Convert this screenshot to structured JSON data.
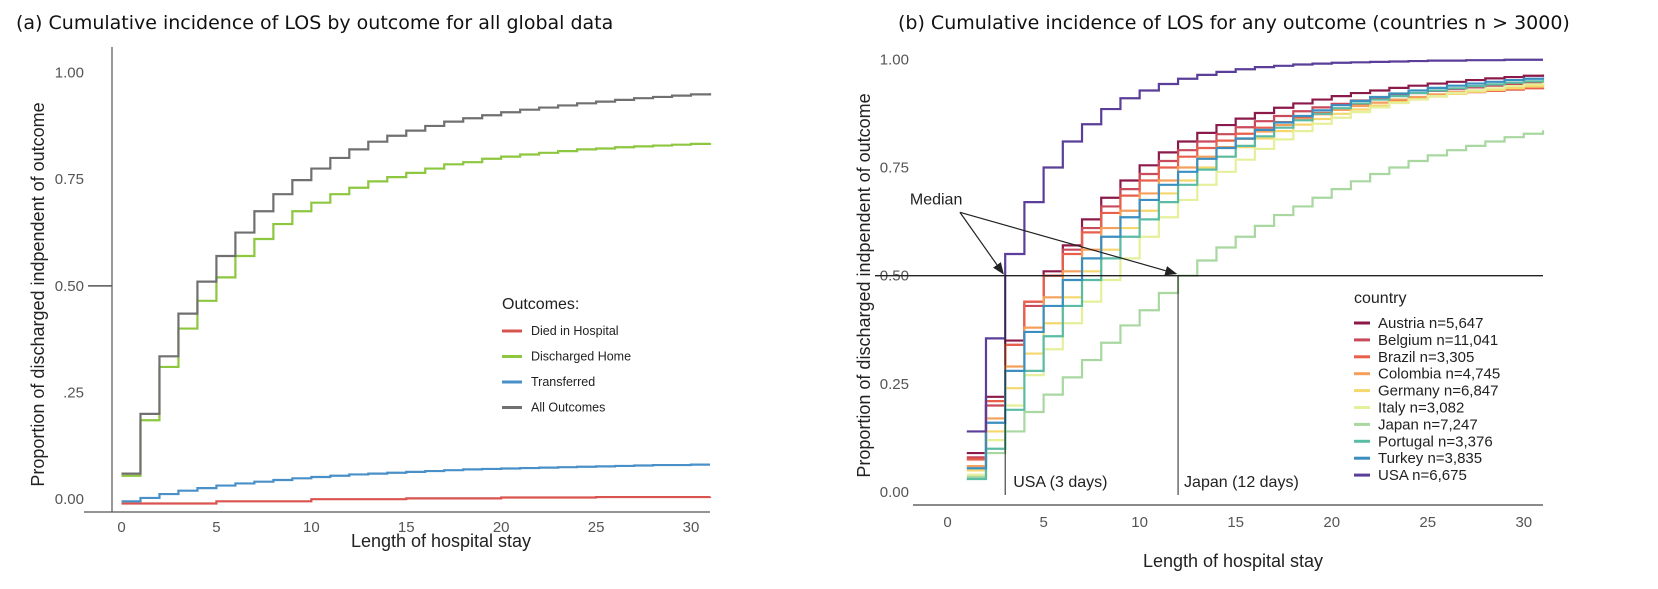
{
  "chart_data": [
    {
      "type": "line",
      "step": true,
      "title": "(a) Cumulative incidence of LOS by outcome for all global data",
      "xlabel": "Length of hospital stay",
      "ylabel": "Proportion of discharged indpendent of outcome",
      "xlim": [
        -0.5,
        31
      ],
      "ylim": [
        -0.03,
        1.06
      ],
      "xticks": [
        "0",
        "5",
        "10",
        "15",
        "20",
        "25",
        "30"
      ],
      "xtick_values": [
        0,
        5,
        10,
        15,
        20,
        25,
        30
      ],
      "yticks": [
        "0.00",
        ".25",
        "0.50",
        "0.75",
        "1.00"
      ],
      "ytick_values": [
        0,
        0.25,
        0.5,
        0.75,
        1.0
      ],
      "legend_title": "Outcomes:",
      "legend_position": "center-right",
      "grid": false,
      "series": [
        {
          "name": "Died in Hospital",
          "color": "#d9534f",
          "x": [
            0,
            5,
            10,
            15,
            20,
            25,
            31
          ],
          "y": [
            -0.01,
            -0.005,
            -0.0,
            0.002,
            0.004,
            0.005,
            0.006
          ]
        },
        {
          "name": "Discharged Home",
          "color": "#8dc63f",
          "x": [
            0,
            1,
            2,
            3,
            4,
            5,
            6,
            7,
            8,
            9,
            10,
            11,
            12,
            13,
            14,
            15,
            16,
            17,
            18,
            19,
            20,
            21,
            22,
            23,
            24,
            25,
            26,
            27,
            28,
            29,
            30,
            31
          ],
          "y": [
            0.055,
            0.185,
            0.31,
            0.4,
            0.465,
            0.52,
            0.57,
            0.61,
            0.645,
            0.675,
            0.695,
            0.715,
            0.73,
            0.745,
            0.755,
            0.765,
            0.775,
            0.785,
            0.79,
            0.798,
            0.803,
            0.808,
            0.812,
            0.816,
            0.82,
            0.822,
            0.825,
            0.827,
            0.829,
            0.831,
            0.833,
            0.835
          ]
        },
        {
          "name": "Transferred",
          "color": "#4a90c8",
          "x": [
            0,
            1,
            2,
            3,
            4,
            5,
            6,
            7,
            8,
            9,
            10,
            11,
            12,
            13,
            14,
            15,
            16,
            17,
            18,
            19,
            20,
            21,
            22,
            23,
            24,
            25,
            26,
            27,
            28,
            29,
            30,
            31
          ],
          "y": [
            -0.005,
            0.003,
            0.012,
            0.02,
            0.026,
            0.032,
            0.037,
            0.041,
            0.045,
            0.049,
            0.052,
            0.055,
            0.058,
            0.06,
            0.062,
            0.064,
            0.066,
            0.068,
            0.07,
            0.071,
            0.072,
            0.073,
            0.074,
            0.075,
            0.076,
            0.077,
            0.078,
            0.079,
            0.08,
            0.08,
            0.081,
            0.081
          ]
        },
        {
          "name": "All Outcomes",
          "color": "#707070",
          "x": [
            0,
            1,
            2,
            3,
            4,
            5,
            6,
            7,
            8,
            9,
            10,
            11,
            12,
            13,
            14,
            15,
            16,
            17,
            18,
            19,
            20,
            21,
            22,
            23,
            24,
            25,
            26,
            27,
            28,
            29,
            30,
            31
          ],
          "y": [
            0.06,
            0.2,
            0.335,
            0.435,
            0.51,
            0.57,
            0.625,
            0.675,
            0.715,
            0.748,
            0.775,
            0.8,
            0.82,
            0.838,
            0.852,
            0.864,
            0.875,
            0.885,
            0.893,
            0.9,
            0.907,
            0.913,
            0.918,
            0.923,
            0.928,
            0.932,
            0.936,
            0.94,
            0.943,
            0.946,
            0.949,
            0.952
          ]
        }
      ]
    },
    {
      "type": "line",
      "step": true,
      "title": "(b) Cumulative incidence of LOS for any outcome (countries n > 3000)",
      "xlabel": "Length of hospital stay",
      "ylabel": "Proportion of discharged indpendent of outcome",
      "xlim": [
        -1.8,
        31
      ],
      "ylim": [
        -0.03,
        1.04
      ],
      "xticks": [
        "0",
        "5",
        "10",
        "15",
        "20",
        "25",
        "30"
      ],
      "xtick_values": [
        0,
        5,
        10,
        15,
        20,
        25,
        30
      ],
      "yticks": [
        "0.00",
        "0.25",
        "0.50",
        "0.75",
        "1.00"
      ],
      "ytick_values": [
        0,
        0.25,
        0.5,
        0.75,
        1.0
      ],
      "legend_title": "country",
      "legend_position": "right",
      "grid": false,
      "reference_line_y": 0.5,
      "annotations": [
        {
          "text": "Median",
          "x": -0.4,
          "y": 0.665
        },
        {
          "text": "USA (3 days)",
          "x": 3,
          "y": 0.5
        },
        {
          "text": "Japan (12 days)",
          "x": 12,
          "y": 0.5
        }
      ],
      "series": [
        {
          "name": "Austria n=5,647",
          "color": "#8b1a4a",
          "x": [
            1,
            2,
            3,
            4,
            5,
            6,
            7,
            8,
            9,
            10,
            11,
            12,
            13,
            14,
            15,
            16,
            17,
            18,
            19,
            20,
            21,
            22,
            23,
            24,
            25,
            26,
            27,
            28,
            29,
            30,
            31
          ],
          "y": [
            0.09,
            0.22,
            0.35,
            0.44,
            0.51,
            0.57,
            0.63,
            0.68,
            0.72,
            0.755,
            0.785,
            0.81,
            0.83,
            0.848,
            0.863,
            0.876,
            0.888,
            0.898,
            0.907,
            0.915,
            0.922,
            0.928,
            0.934,
            0.939,
            0.944,
            0.948,
            0.952,
            0.956,
            0.959,
            0.962,
            0.965
          ]
        },
        {
          "name": "Belgium n=11,041",
          "color": "#c94a5a",
          "x": [
            1,
            2,
            3,
            4,
            5,
            6,
            7,
            8,
            9,
            10,
            11,
            12,
            13,
            14,
            15,
            16,
            17,
            18,
            19,
            20,
            21,
            22,
            23,
            24,
            25,
            26,
            27,
            28,
            29,
            30,
            31
          ],
          "y": [
            0.08,
            0.2,
            0.34,
            0.43,
            0.5,
            0.56,
            0.61,
            0.66,
            0.7,
            0.735,
            0.765,
            0.79,
            0.81,
            0.827,
            0.843,
            0.857,
            0.869,
            0.88,
            0.889,
            0.897,
            0.905,
            0.911,
            0.917,
            0.922,
            0.927,
            0.931,
            0.935,
            0.939,
            0.942,
            0.945,
            0.948
          ]
        },
        {
          "name": "Brazil n=3,305",
          "color": "#e8604c",
          "x": [
            1,
            2,
            3,
            4,
            5,
            6,
            7,
            8,
            9,
            10,
            11,
            12,
            13,
            14,
            15,
            16,
            17,
            18,
            19,
            20,
            21,
            22,
            23,
            24,
            25,
            26,
            27,
            28,
            29,
            30,
            31
          ],
          "y": [
            0.075,
            0.21,
            0.34,
            0.44,
            0.5,
            0.55,
            0.6,
            0.645,
            0.685,
            0.72,
            0.75,
            0.775,
            0.795,
            0.812,
            0.828,
            0.842,
            0.855,
            0.866,
            0.876,
            0.885,
            0.893,
            0.9,
            0.906,
            0.911,
            0.916,
            0.92,
            0.924,
            0.927,
            0.93,
            0.933,
            0.935
          ]
        },
        {
          "name": "Colombia n=4,745",
          "color": "#f5a05a",
          "x": [
            1,
            2,
            3,
            4,
            5,
            6,
            7,
            8,
            9,
            10,
            11,
            12,
            13,
            14,
            15,
            16,
            17,
            18,
            19,
            20,
            21,
            22,
            23,
            24,
            25,
            26,
            27,
            28,
            29,
            30,
            31
          ],
          "y": [
            0.06,
            0.17,
            0.29,
            0.38,
            0.45,
            0.51,
            0.56,
            0.61,
            0.65,
            0.69,
            0.72,
            0.75,
            0.775,
            0.797,
            0.816,
            0.833,
            0.848,
            0.861,
            0.873,
            0.883,
            0.892,
            0.9,
            0.907,
            0.913,
            0.919,
            0.924,
            0.928,
            0.932,
            0.936,
            0.939,
            0.942
          ]
        },
        {
          "name": "Germany n=6,847",
          "color": "#f5d76e",
          "x": [
            1,
            2,
            3,
            4,
            5,
            6,
            7,
            8,
            9,
            10,
            11,
            12,
            13,
            14,
            15,
            16,
            17,
            18,
            19,
            20,
            21,
            22,
            23,
            24,
            25,
            26,
            27,
            28,
            29,
            30,
            31
          ],
          "y": [
            0.05,
            0.14,
            0.24,
            0.32,
            0.39,
            0.45,
            0.51,
            0.56,
            0.61,
            0.65,
            0.69,
            0.72,
            0.75,
            0.775,
            0.797,
            0.817,
            0.834,
            0.849,
            0.862,
            0.874,
            0.884,
            0.893,
            0.901,
            0.908,
            0.914,
            0.92,
            0.925,
            0.929,
            0.933,
            0.937,
            0.94
          ]
        },
        {
          "name": "Italy n=3,082",
          "color": "#e6ef9a",
          "x": [
            1,
            2,
            3,
            4,
            5,
            6,
            7,
            8,
            9,
            10,
            11,
            12,
            13,
            14,
            15,
            16,
            17,
            18,
            19,
            20,
            21,
            22,
            23,
            24,
            25,
            26,
            27,
            28,
            29,
            30,
            31
          ],
          "y": [
            0.04,
            0.12,
            0.2,
            0.27,
            0.33,
            0.39,
            0.44,
            0.49,
            0.54,
            0.59,
            0.635,
            0.675,
            0.71,
            0.74,
            0.768,
            0.793,
            0.815,
            0.834,
            0.851,
            0.865,
            0.878,
            0.889,
            0.899,
            0.907,
            0.915,
            0.922,
            0.928,
            0.933,
            0.938,
            0.942,
            0.946
          ]
        },
        {
          "name": "Japan n=7,247",
          "color": "#a8d8a0",
          "x": [
            1,
            2,
            3,
            4,
            5,
            6,
            7,
            8,
            9,
            10,
            11,
            12,
            13,
            14,
            15,
            16,
            17,
            18,
            19,
            20,
            21,
            22,
            23,
            24,
            25,
            26,
            27,
            28,
            29,
            30,
            31
          ],
          "y": [
            0.035,
            0.09,
            0.14,
            0.185,
            0.225,
            0.265,
            0.305,
            0.345,
            0.385,
            0.42,
            0.46,
            0.5,
            0.535,
            0.565,
            0.59,
            0.615,
            0.64,
            0.66,
            0.68,
            0.7,
            0.718,
            0.735,
            0.75,
            0.765,
            0.778,
            0.79,
            0.8,
            0.81,
            0.82,
            0.828,
            0.836
          ]
        },
        {
          "name": "Portugal n=3,376",
          "color": "#5bbca6",
          "x": [
            1,
            2,
            3,
            4,
            5,
            6,
            7,
            8,
            9,
            10,
            11,
            12,
            13,
            14,
            15,
            16,
            17,
            18,
            19,
            20,
            21,
            22,
            23,
            24,
            25,
            26,
            27,
            28,
            29,
            30,
            31
          ],
          "y": [
            0.03,
            0.1,
            0.19,
            0.28,
            0.36,
            0.43,
            0.49,
            0.54,
            0.59,
            0.63,
            0.67,
            0.71,
            0.745,
            0.775,
            0.8,
            0.822,
            0.842,
            0.859,
            0.874,
            0.887,
            0.898,
            0.907,
            0.915,
            0.922,
            0.928,
            0.933,
            0.938,
            0.942,
            0.946,
            0.949,
            0.952
          ]
        },
        {
          "name": "Turkey n=3,835",
          "color": "#3a8fc0",
          "x": [
            1,
            2,
            3,
            4,
            5,
            6,
            7,
            8,
            9,
            10,
            11,
            12,
            13,
            14,
            15,
            16,
            17,
            18,
            19,
            20,
            21,
            22,
            23,
            24,
            25,
            26,
            27,
            28,
            29,
            30,
            31
          ],
          "y": [
            0.055,
            0.16,
            0.28,
            0.37,
            0.43,
            0.49,
            0.54,
            0.59,
            0.635,
            0.675,
            0.71,
            0.74,
            0.77,
            0.795,
            0.817,
            0.837,
            0.854,
            0.869,
            0.882,
            0.894,
            0.904,
            0.913,
            0.921,
            0.928,
            0.934,
            0.939,
            0.944,
            0.948,
            0.952,
            0.955,
            0.958
          ]
        },
        {
          "name": "USA n=6,675",
          "color": "#5a3e99",
          "x": [
            1,
            2,
            3,
            4,
            5,
            6,
            7,
            8,
            9,
            10,
            11,
            12,
            13,
            14,
            15,
            16,
            17,
            18,
            19,
            20,
            21,
            22,
            23,
            24,
            25,
            26,
            27,
            28,
            29,
            30,
            31
          ],
          "y": [
            0.14,
            0.355,
            0.55,
            0.67,
            0.75,
            0.81,
            0.85,
            0.885,
            0.91,
            0.928,
            0.943,
            0.955,
            0.964,
            0.971,
            0.977,
            0.982,
            0.985,
            0.988,
            0.99,
            0.992,
            0.993,
            0.994,
            0.995,
            0.996,
            0.997,
            0.997,
            0.998,
            0.998,
            0.999,
            0.999,
            0.999
          ]
        }
      ]
    }
  ]
}
